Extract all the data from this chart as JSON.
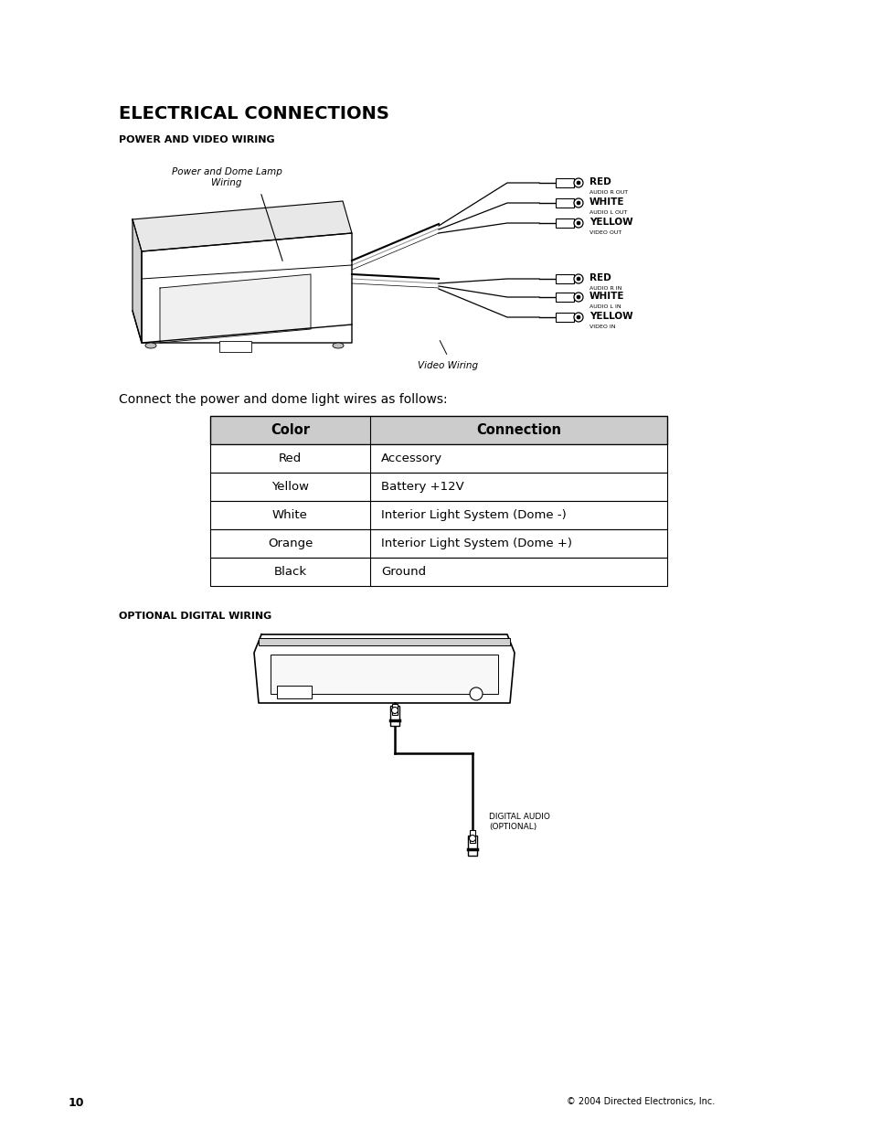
{
  "page_title": "ELECTRICAL CONNECTIONS",
  "section1_title": "POWER AND VIDEO WIRING",
  "section2_title": "OPTIONAL DIGITAL WIRING",
  "connect_text": "Connect the power and dome light wires as follows:",
  "table_headers": [
    "Color",
    "Connection"
  ],
  "table_rows": [
    [
      "Red",
      "Accessory"
    ],
    [
      "Yellow",
      "Battery +12V"
    ],
    [
      "White",
      "Interior Light System (Dome -)"
    ],
    [
      "Orange",
      "Interior Light System (Dome +)"
    ],
    [
      "Black",
      "Ground"
    ]
  ],
  "label_power_dome": "Power and Dome Lamp\nWiring",
  "label_video_wiring": "Video Wiring",
  "label_digital_audio": "DIGITAL AUDIO\n(OPTIONAL)",
  "wire_labels_top": [
    "RED",
    "WHITE",
    "YELLOW"
  ],
  "wire_labels_bottom": [
    "RED",
    "WHITE",
    "YELLOW"
  ],
  "wire_small_labels_top": [
    "AUDIO R OUT",
    "AUDIO L OUT",
    "VIDEO OUT"
  ],
  "wire_small_labels_bottom": [
    "AUDIO R IN",
    "AUDIO L IN",
    "VIDEO IN"
  ],
  "page_number": "10",
  "copyright": "© 2004 Directed Electronics, Inc.",
  "bg_color": "#ffffff",
  "text_color": "#000000",
  "header_bg": "#cccccc",
  "table_border": "#000000",
  "title_fontsize": 14,
  "section_fontsize": 8,
  "body_fontsize": 10,
  "table_fontsize": 9.5
}
